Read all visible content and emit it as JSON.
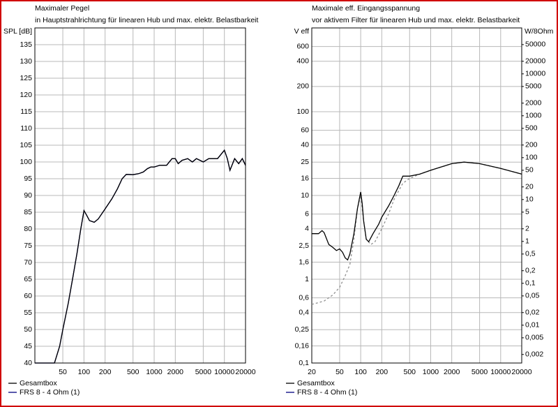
{
  "chart_data": [
    {
      "type": "line",
      "title": "Maximaler Pegel",
      "subtitle": "in Hauptstrahlrichtung für linearen Hub und max. elektr. Belastbarkeit",
      "y_label": "SPL [dB]",
      "xlog": true,
      "grid": true,
      "xlim": [
        20,
        20000
      ],
      "xticks": [
        50,
        100,
        200,
        500,
        1000,
        2000,
        5000,
        10000,
        20000
      ],
      "ylim": [
        40,
        140
      ],
      "yticks": [
        40,
        45,
        50,
        55,
        60,
        65,
        70,
        75,
        80,
        85,
        90,
        95,
        100,
        105,
        110,
        115,
        120,
        125,
        130,
        135
      ],
      "series": [
        {
          "name": "Gesamtbox",
          "color": "#000000",
          "x": [
            20,
            30,
            38,
            45,
            50,
            60,
            70,
            80,
            90,
            100,
            110,
            120,
            140,
            160,
            200,
            250,
            300,
            350,
            400,
            500,
            600,
            700,
            800,
            900,
            1000,
            1200,
            1500,
            1800,
            2000,
            2200,
            2500,
            3000,
            3500,
            4000,
            5000,
            6000,
            7000,
            8000,
            10000,
            11000,
            12000,
            14000,
            16000,
            18000,
            20000
          ],
          "values": [
            40,
            40,
            40,
            45,
            50,
            58,
            66,
            73,
            80,
            85.5,
            84,
            82.5,
            82,
            83,
            86,
            89,
            92,
            95,
            96.3,
            96.2,
            96.5,
            97,
            98,
            98.5,
            98.5,
            99,
            99,
            101,
            101,
            99.5,
            100.5,
            101,
            100,
            101,
            100,
            101,
            101,
            101,
            103.5,
            101,
            97.5,
            101,
            99.5,
            101,
            99
          ]
        },
        {
          "name": "FRS 8 - 4 Ohm (1)",
          "color": "#000080",
          "x": [
            20,
            30,
            38,
            45,
            50,
            60,
            70,
            80,
            90,
            100,
            110,
            120,
            140,
            160,
            200,
            250,
            300,
            350,
            400,
            500,
            600,
            700,
            800,
            900,
            1000,
            1200,
            1500,
            1800,
            2000,
            2200,
            2500,
            3000,
            3500,
            4000,
            5000,
            6000,
            7000,
            8000,
            10000,
            11000,
            12000,
            14000,
            16000,
            18000,
            20000
          ],
          "values": [
            40,
            40,
            40,
            45,
            50,
            58,
            66,
            73,
            80,
            85.5,
            84,
            82.5,
            82,
            83,
            86,
            89,
            92,
            95,
            96.3,
            96.2,
            96.5,
            97,
            98,
            98.5,
            98.5,
            99,
            99,
            101,
            101,
            99.5,
            100.5,
            101,
            100,
            101,
            100,
            101,
            101,
            101,
            103.5,
            101,
            97.5,
            101,
            99.5,
            101,
            99
          ]
        }
      ]
    },
    {
      "type": "line",
      "title": "Maximale eff. Eingangsspannung",
      "subtitle": "vor aktivem Filter für linearen Hub und max. elektr. Belastbarkeit",
      "y_label": "V eff",
      "y2_label": "W/8Ohm",
      "xlog": true,
      "ylog": true,
      "y2log": true,
      "grid": true,
      "xlim": [
        20,
        20000
      ],
      "xticks": [
        20,
        50,
        100,
        200,
        500,
        1000,
        2000,
        5000,
        10000,
        20000
      ],
      "ylim": [
        0.1,
        1000
      ],
      "yticks": [
        {
          "value": 0.1,
          "label": "0,1"
        },
        {
          "value": 0.16,
          "label": "0,16"
        },
        {
          "value": 0.25,
          "label": "0,25"
        },
        {
          "value": 0.4,
          "label": "0,4"
        },
        {
          "value": 0.6,
          "label": "0,6"
        },
        1,
        {
          "value": 1.6,
          "label": "1,6"
        },
        {
          "value": 2.5,
          "label": "2,5"
        },
        4,
        6,
        10,
        16,
        25,
        40,
        60,
        100,
        200,
        400,
        600
      ],
      "y2lim": [
        0.00125,
        125000
      ],
      "y2ticks": [
        {
          "value": 0.002,
          "label": "0,002"
        },
        {
          "value": 0.005,
          "label": "0,005"
        },
        {
          "value": 0.01,
          "label": "0,01"
        },
        {
          "value": 0.02,
          "label": "0,02"
        },
        {
          "value": 0.05,
          "label": "0,05"
        },
        {
          "value": 0.1,
          "label": "0,1"
        },
        {
          "value": 0.2,
          "label": "0,2"
        },
        {
          "value": 0.5,
          "label": "0,5"
        },
        1,
        2,
        5,
        10,
        20,
        50,
        100,
        200,
        500,
        1000,
        2000,
        5000,
        10000,
        20000,
        50000
      ],
      "series": [
        {
          "name": "Gesamtbox",
          "color": "#000000",
          "x": [
            20,
            25,
            28,
            30,
            35,
            40,
            45,
            50,
            55,
            60,
            65,
            70,
            80,
            90,
            100,
            105,
            110,
            120,
            130,
            150,
            180,
            200,
            250,
            300,
            350,
            400,
            500,
            700,
            1000,
            2000,
            3000,
            5000,
            10000,
            20000
          ],
          "values": [
            3.5,
            3.5,
            3.8,
            3.6,
            2.6,
            2.4,
            2.2,
            2.3,
            2.1,
            1.8,
            1.7,
            2,
            3.5,
            7,
            11,
            8,
            5,
            3,
            2.8,
            3.5,
            4.5,
            5.5,
            7.5,
            10,
            13,
            17,
            17,
            18,
            20,
            24,
            25,
            24,
            21,
            18
          ]
        },
        {
          "name": "FRS 8 - 4 Ohm (1)",
          "color": "#000080",
          "dashed": true,
          "x": [
            20,
            30,
            40,
            50,
            60,
            70,
            80,
            90,
            100,
            110,
            120,
            140,
            160,
            200,
            250,
            300,
            400,
            500,
            700,
            1000,
            2000,
            3000,
            5000,
            10000,
            20000
          ],
          "values": [
            0.5,
            0.55,
            0.65,
            0.8,
            1.1,
            1.5,
            3,
            7,
            10,
            5,
            3,
            2.6,
            2.8,
            4,
            6,
            9,
            14,
            16,
            18,
            20,
            24,
            25,
            24,
            21,
            18
          ]
        }
      ]
    }
  ]
}
